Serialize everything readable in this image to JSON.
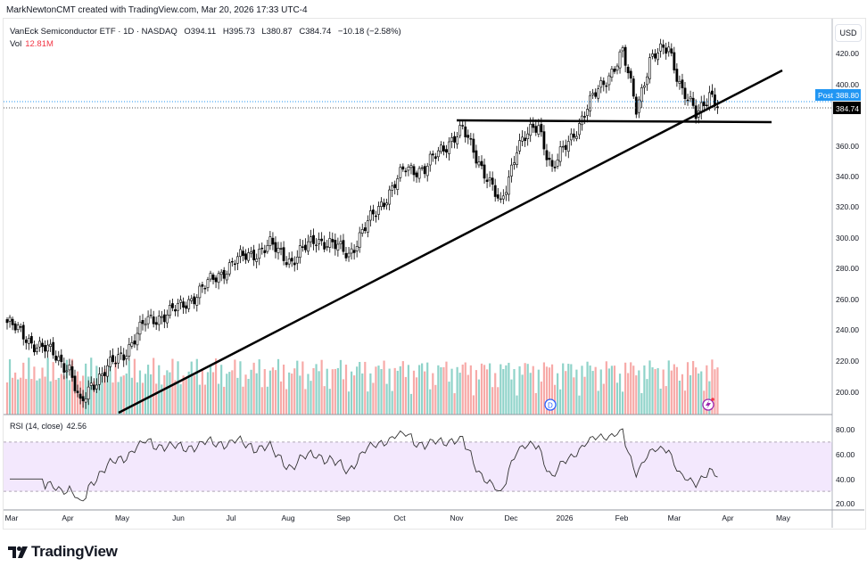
{
  "header": {
    "credit": "MarkNewtonCMT created with TradingView.com, Mar 20, 2026 17:33 UTC-4",
    "symbol": "VanEck Semiconductor ETF · 1D · NASDAQ",
    "open": "O394.11",
    "high": "H395.73",
    "low": "L380.87",
    "close": "C384.74",
    "change": "−10.18 (−2.58%)",
    "vol_label": "Vol",
    "vol_value": "12.81M",
    "currency": "USD"
  },
  "rsi": {
    "label": "RSI (14, close)",
    "value": "42.56"
  },
  "price_tags": {
    "post_label": "Post",
    "post_price": "388.80",
    "last_price": "384.74"
  },
  "markers": {
    "dividend": "D"
  },
  "brand": "TradingView",
  "colors": {
    "up_volume": "#8fd3c9",
    "down_volume": "#f7aaa8",
    "post": "#2196f3",
    "rsi_band": "#f3e8fd"
  },
  "chart_data": {
    "type": "candlestick",
    "title": "VanEck Semiconductor ETF · 1D · NASDAQ",
    "ylabel": "USD",
    "ylim": [
      185,
      430
    ],
    "y_ticks": [
      "420.00",
      "400.00",
      "380.00",
      "360.00",
      "340.00",
      "320.00",
      "300.00",
      "280.00",
      "260.00",
      "240.00",
      "220.00",
      "200.00"
    ],
    "x_ticks": [
      "Mar",
      "Apr",
      "May",
      "Jun",
      "Jul",
      "Aug",
      "Sep",
      "Oct",
      "Nov",
      "Dec",
      "2026",
      "Feb",
      "Mar",
      "Apr",
      "May"
    ],
    "rsi_ticks": [
      "80.00",
      "60.00",
      "40.00",
      "20.00"
    ],
    "rsi_band": [
      30,
      70
    ],
    "close_keypoints": [
      [
        0,
        245
      ],
      [
        11,
        230
      ],
      [
        17,
        225
      ],
      [
        23,
        215
      ],
      [
        27,
        190
      ],
      [
        31,
        205
      ],
      [
        43,
        225
      ],
      [
        51,
        245
      ],
      [
        64,
        255
      ],
      [
        74,
        270
      ],
      [
        84,
        285
      ],
      [
        97,
        295
      ],
      [
        105,
        285
      ],
      [
        114,
        300
      ],
      [
        126,
        290
      ],
      [
        137,
        320
      ],
      [
        147,
        345
      ],
      [
        154,
        345
      ],
      [
        164,
        365
      ],
      [
        168,
        370
      ],
      [
        177,
        340
      ],
      [
        182,
        320
      ],
      [
        188,
        360
      ],
      [
        196,
        373
      ],
      [
        201,
        345
      ],
      [
        208,
        365
      ],
      [
        214,
        385
      ],
      [
        227,
        420
      ],
      [
        232,
        385
      ],
      [
        237,
        415
      ],
      [
        244,
        425
      ],
      [
        249,
        395
      ],
      [
        254,
        380
      ],
      [
        259,
        395
      ],
      [
        262,
        384.74
      ]
    ],
    "trendlines": [
      {
        "name": "rising-support",
        "from_price": 190,
        "to_price": 410
      },
      {
        "name": "horizontal-support",
        "price": 375
      }
    ]
  }
}
